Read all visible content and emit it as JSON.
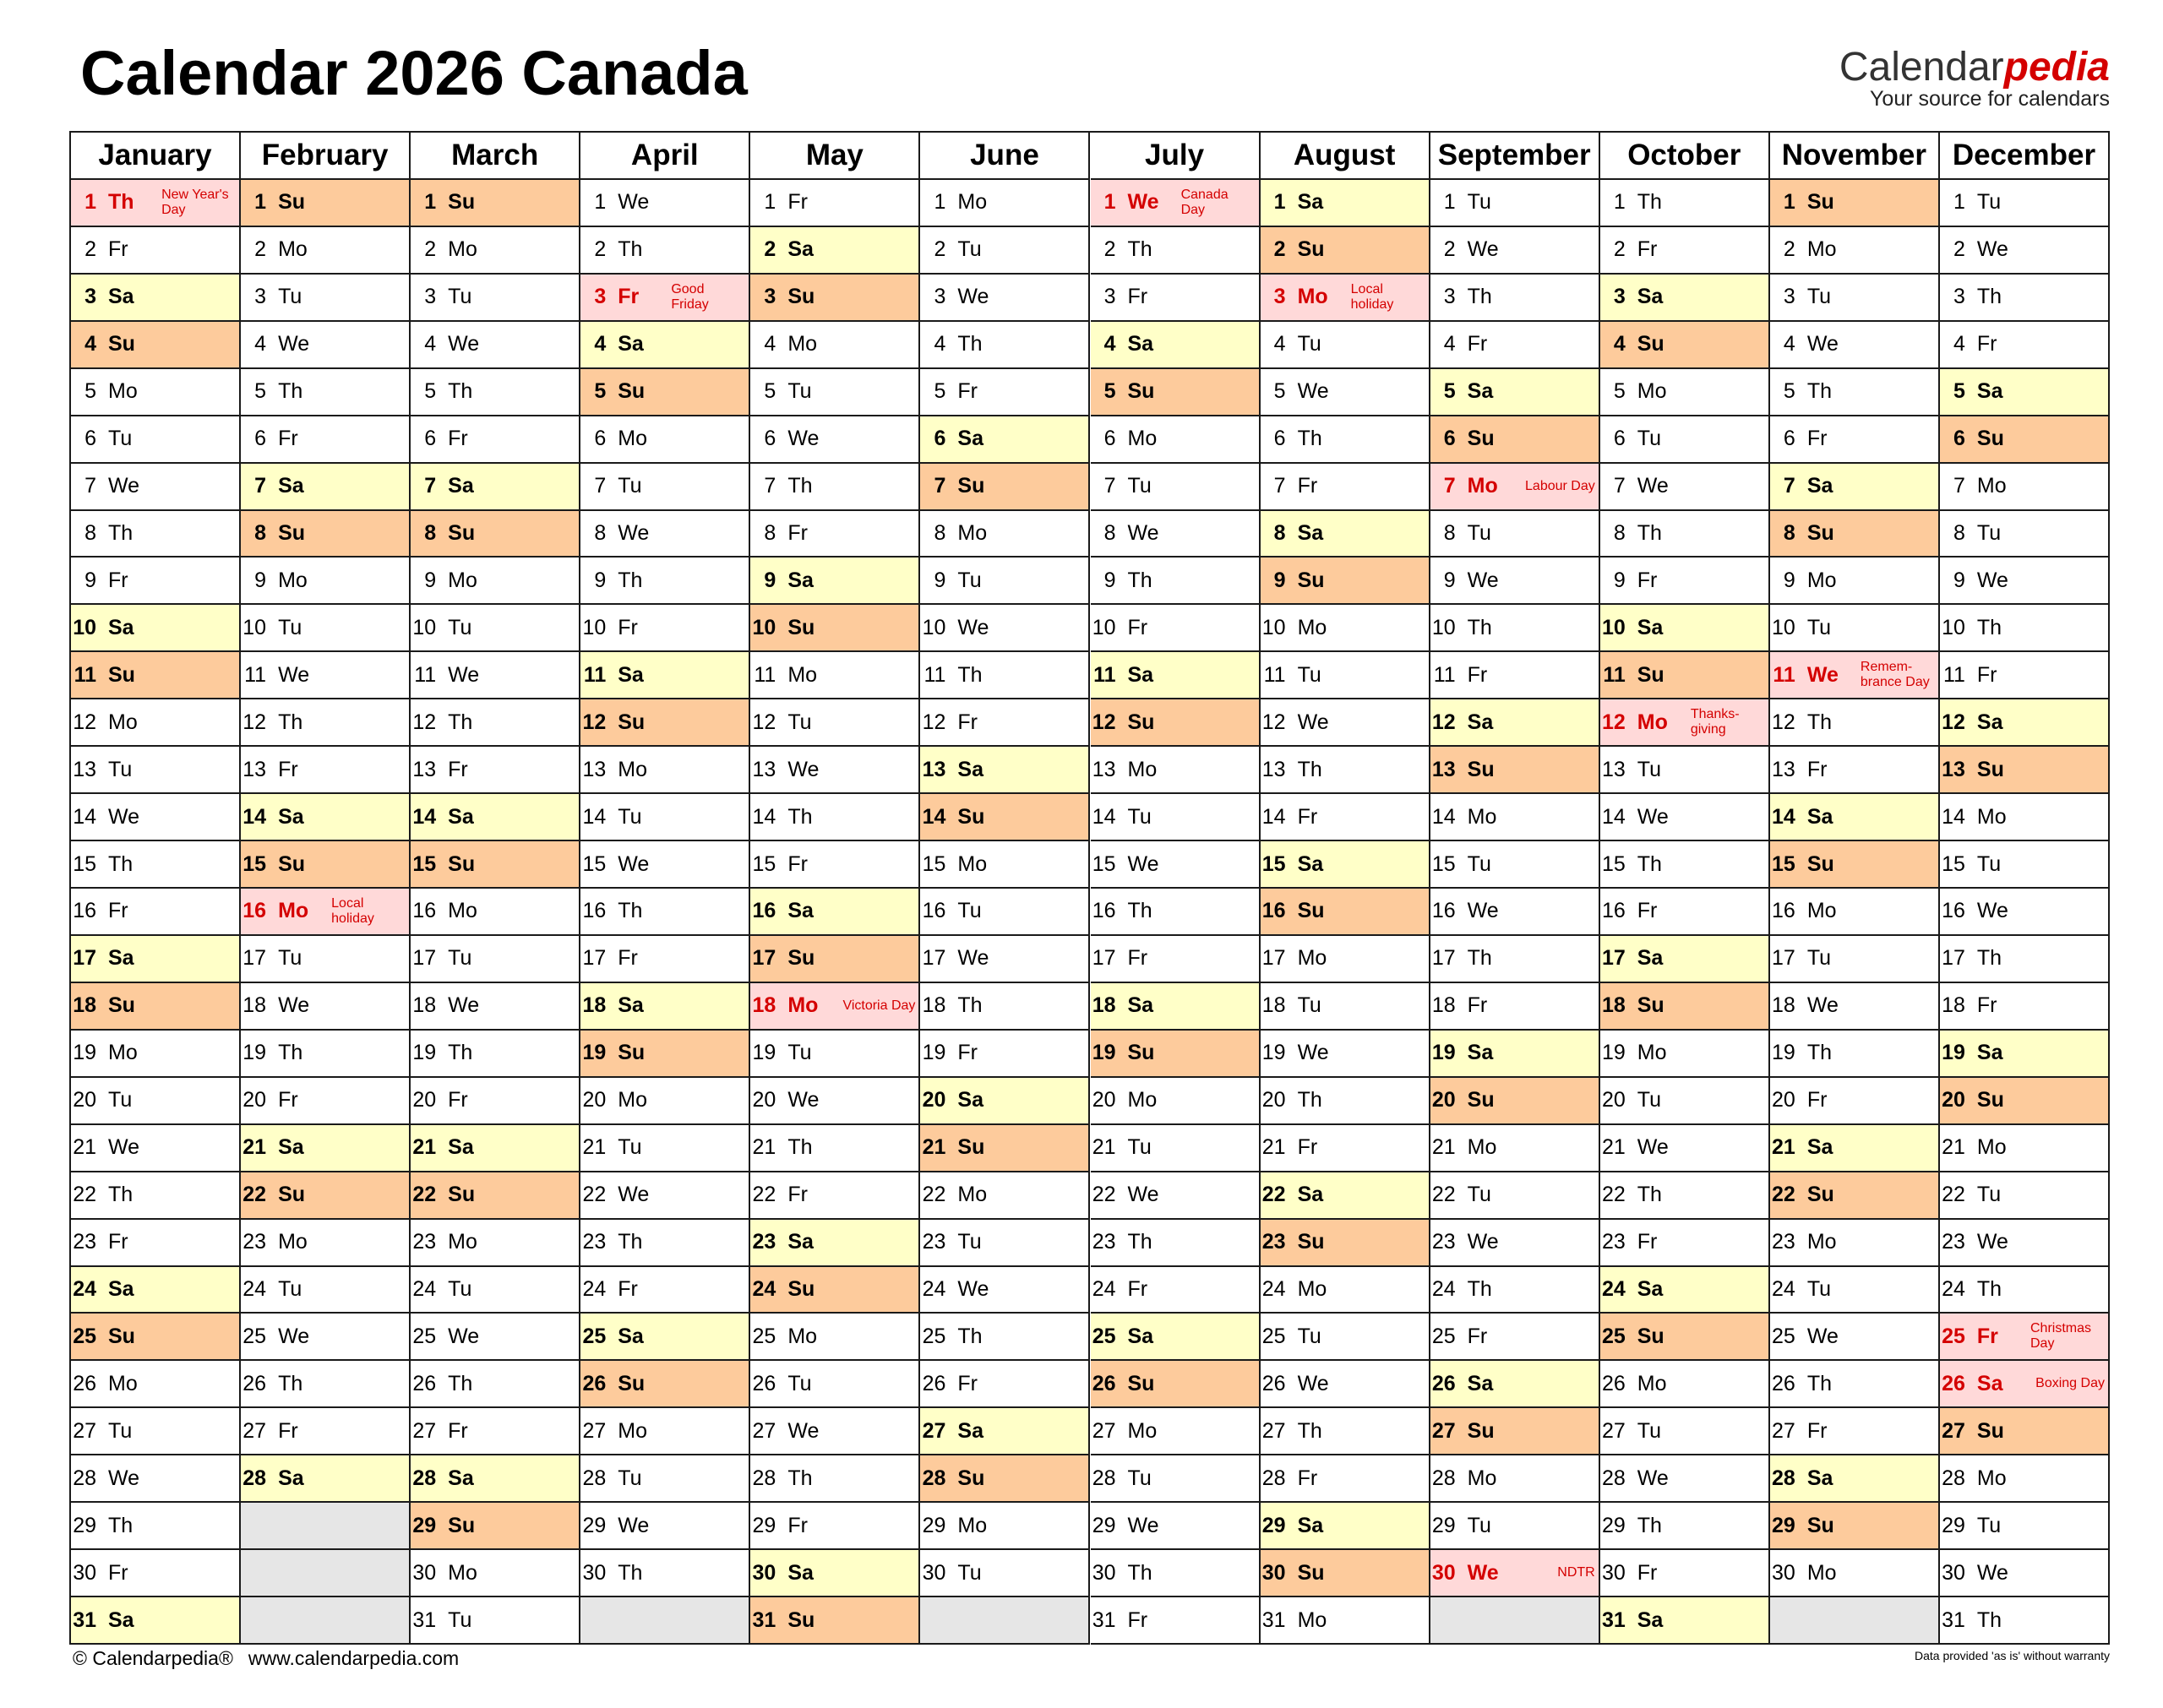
{
  "title": "Calendar 2026 Canada",
  "logo": {
    "name": "Calendar",
    "accent": "pedia",
    "tagline": "Your source for calendars"
  },
  "footer": {
    "copyright": "© Calendarpedia®",
    "url": "www.calendarpedia.com",
    "disclaimer": "Data provided 'as is' without warranty"
  },
  "day_colors": {
    "Sa": "#ffffc8",
    "Su": "#fdcb9c"
  },
  "holiday_color": "#ffd9d9",
  "holiday_text_color": "#d40000",
  "empty_color": "#e6e6e6",
  "months": [
    {
      "name": "January",
      "days": [
        [
          1,
          "Th",
          "New Year's Day"
        ],
        [
          2,
          "Fr"
        ],
        [
          3,
          "Sa"
        ],
        [
          4,
          "Su"
        ],
        [
          5,
          "Mo"
        ],
        [
          6,
          "Tu"
        ],
        [
          7,
          "We"
        ],
        [
          8,
          "Th"
        ],
        [
          9,
          "Fr"
        ],
        [
          10,
          "Sa"
        ],
        [
          11,
          "Su"
        ],
        [
          12,
          "Mo"
        ],
        [
          13,
          "Tu"
        ],
        [
          14,
          "We"
        ],
        [
          15,
          "Th"
        ],
        [
          16,
          "Fr"
        ],
        [
          17,
          "Sa"
        ],
        [
          18,
          "Su"
        ],
        [
          19,
          "Mo"
        ],
        [
          20,
          "Tu"
        ],
        [
          21,
          "We"
        ],
        [
          22,
          "Th"
        ],
        [
          23,
          "Fr"
        ],
        [
          24,
          "Sa"
        ],
        [
          25,
          "Su"
        ],
        [
          26,
          "Mo"
        ],
        [
          27,
          "Tu"
        ],
        [
          28,
          "We"
        ],
        [
          29,
          "Th"
        ],
        [
          30,
          "Fr"
        ],
        [
          31,
          "Sa"
        ]
      ]
    },
    {
      "name": "February",
      "days": [
        [
          1,
          "Su"
        ],
        [
          2,
          "Mo"
        ],
        [
          3,
          "Tu"
        ],
        [
          4,
          "We"
        ],
        [
          5,
          "Th"
        ],
        [
          6,
          "Fr"
        ],
        [
          7,
          "Sa"
        ],
        [
          8,
          "Su"
        ],
        [
          9,
          "Mo"
        ],
        [
          10,
          "Tu"
        ],
        [
          11,
          "We"
        ],
        [
          12,
          "Th"
        ],
        [
          13,
          "Fr"
        ],
        [
          14,
          "Sa"
        ],
        [
          15,
          "Su"
        ],
        [
          16,
          "Mo",
          "Local holiday"
        ],
        [
          17,
          "Tu"
        ],
        [
          18,
          "We"
        ],
        [
          19,
          "Th"
        ],
        [
          20,
          "Fr"
        ],
        [
          21,
          "Sa"
        ],
        [
          22,
          "Su"
        ],
        [
          23,
          "Mo"
        ],
        [
          24,
          "Tu"
        ],
        [
          25,
          "We"
        ],
        [
          26,
          "Th"
        ],
        [
          27,
          "Fr"
        ],
        [
          28,
          "Sa"
        ]
      ]
    },
    {
      "name": "March",
      "days": [
        [
          1,
          "Su"
        ],
        [
          2,
          "Mo"
        ],
        [
          3,
          "Tu"
        ],
        [
          4,
          "We"
        ],
        [
          5,
          "Th"
        ],
        [
          6,
          "Fr"
        ],
        [
          7,
          "Sa"
        ],
        [
          8,
          "Su"
        ],
        [
          9,
          "Mo"
        ],
        [
          10,
          "Tu"
        ],
        [
          11,
          "We"
        ],
        [
          12,
          "Th"
        ],
        [
          13,
          "Fr"
        ],
        [
          14,
          "Sa"
        ],
        [
          15,
          "Su"
        ],
        [
          16,
          "Mo"
        ],
        [
          17,
          "Tu"
        ],
        [
          18,
          "We"
        ],
        [
          19,
          "Th"
        ],
        [
          20,
          "Fr"
        ],
        [
          21,
          "Sa"
        ],
        [
          22,
          "Su"
        ],
        [
          23,
          "Mo"
        ],
        [
          24,
          "Tu"
        ],
        [
          25,
          "We"
        ],
        [
          26,
          "Th"
        ],
        [
          27,
          "Fr"
        ],
        [
          28,
          "Sa"
        ],
        [
          29,
          "Su"
        ],
        [
          30,
          "Mo"
        ],
        [
          31,
          "Tu"
        ]
      ]
    },
    {
      "name": "April",
      "days": [
        [
          1,
          "We"
        ],
        [
          2,
          "Th"
        ],
        [
          3,
          "Fr",
          "Good Friday"
        ],
        [
          4,
          "Sa"
        ],
        [
          5,
          "Su"
        ],
        [
          6,
          "Mo"
        ],
        [
          7,
          "Tu"
        ],
        [
          8,
          "We"
        ],
        [
          9,
          "Th"
        ],
        [
          10,
          "Fr"
        ],
        [
          11,
          "Sa"
        ],
        [
          12,
          "Su"
        ],
        [
          13,
          "Mo"
        ],
        [
          14,
          "Tu"
        ],
        [
          15,
          "We"
        ],
        [
          16,
          "Th"
        ],
        [
          17,
          "Fr"
        ],
        [
          18,
          "Sa"
        ],
        [
          19,
          "Su"
        ],
        [
          20,
          "Mo"
        ],
        [
          21,
          "Tu"
        ],
        [
          22,
          "We"
        ],
        [
          23,
          "Th"
        ],
        [
          24,
          "Fr"
        ],
        [
          25,
          "Sa"
        ],
        [
          26,
          "Su"
        ],
        [
          27,
          "Mo"
        ],
        [
          28,
          "Tu"
        ],
        [
          29,
          "We"
        ],
        [
          30,
          "Th"
        ]
      ]
    },
    {
      "name": "May",
      "days": [
        [
          1,
          "Fr"
        ],
        [
          2,
          "Sa"
        ],
        [
          3,
          "Su"
        ],
        [
          4,
          "Mo"
        ],
        [
          5,
          "Tu"
        ],
        [
          6,
          "We"
        ],
        [
          7,
          "Th"
        ],
        [
          8,
          "Fr"
        ],
        [
          9,
          "Sa"
        ],
        [
          10,
          "Su"
        ],
        [
          11,
          "Mo"
        ],
        [
          12,
          "Tu"
        ],
        [
          13,
          "We"
        ],
        [
          14,
          "Th"
        ],
        [
          15,
          "Fr"
        ],
        [
          16,
          "Sa"
        ],
        [
          17,
          "Su"
        ],
        [
          18,
          "Mo",
          "Victoria Day"
        ],
        [
          19,
          "Tu"
        ],
        [
          20,
          "We"
        ],
        [
          21,
          "Th"
        ],
        [
          22,
          "Fr"
        ],
        [
          23,
          "Sa"
        ],
        [
          24,
          "Su"
        ],
        [
          25,
          "Mo"
        ],
        [
          26,
          "Tu"
        ],
        [
          27,
          "We"
        ],
        [
          28,
          "Th"
        ],
        [
          29,
          "Fr"
        ],
        [
          30,
          "Sa"
        ],
        [
          31,
          "Su"
        ]
      ]
    },
    {
      "name": "June",
      "days": [
        [
          1,
          "Mo"
        ],
        [
          2,
          "Tu"
        ],
        [
          3,
          "We"
        ],
        [
          4,
          "Th"
        ],
        [
          5,
          "Fr"
        ],
        [
          6,
          "Sa"
        ],
        [
          7,
          "Su"
        ],
        [
          8,
          "Mo"
        ],
        [
          9,
          "Tu"
        ],
        [
          10,
          "We"
        ],
        [
          11,
          "Th"
        ],
        [
          12,
          "Fr"
        ],
        [
          13,
          "Sa"
        ],
        [
          14,
          "Su"
        ],
        [
          15,
          "Mo"
        ],
        [
          16,
          "Tu"
        ],
        [
          17,
          "We"
        ],
        [
          18,
          "Th"
        ],
        [
          19,
          "Fr"
        ],
        [
          20,
          "Sa"
        ],
        [
          21,
          "Su"
        ],
        [
          22,
          "Mo"
        ],
        [
          23,
          "Tu"
        ],
        [
          24,
          "We"
        ],
        [
          25,
          "Th"
        ],
        [
          26,
          "Fr"
        ],
        [
          27,
          "Sa"
        ],
        [
          28,
          "Su"
        ],
        [
          29,
          "Mo"
        ],
        [
          30,
          "Tu"
        ]
      ]
    },
    {
      "name": "July",
      "days": [
        [
          1,
          "We",
          "Canada Day"
        ],
        [
          2,
          "Th"
        ],
        [
          3,
          "Fr"
        ],
        [
          4,
          "Sa"
        ],
        [
          5,
          "Su"
        ],
        [
          6,
          "Mo"
        ],
        [
          7,
          "Tu"
        ],
        [
          8,
          "We"
        ],
        [
          9,
          "Th"
        ],
        [
          10,
          "Fr"
        ],
        [
          11,
          "Sa"
        ],
        [
          12,
          "Su"
        ],
        [
          13,
          "Mo"
        ],
        [
          14,
          "Tu"
        ],
        [
          15,
          "We"
        ],
        [
          16,
          "Th"
        ],
        [
          17,
          "Fr"
        ],
        [
          18,
          "Sa"
        ],
        [
          19,
          "Su"
        ],
        [
          20,
          "Mo"
        ],
        [
          21,
          "Tu"
        ],
        [
          22,
          "We"
        ],
        [
          23,
          "Th"
        ],
        [
          24,
          "Fr"
        ],
        [
          25,
          "Sa"
        ],
        [
          26,
          "Su"
        ],
        [
          27,
          "Mo"
        ],
        [
          28,
          "Tu"
        ],
        [
          29,
          "We"
        ],
        [
          30,
          "Th"
        ],
        [
          31,
          "Fr"
        ]
      ]
    },
    {
      "name": "August",
      "days": [
        [
          1,
          "Sa"
        ],
        [
          2,
          "Su"
        ],
        [
          3,
          "Mo",
          "Local holiday"
        ],
        [
          4,
          "Tu"
        ],
        [
          5,
          "We"
        ],
        [
          6,
          "Th"
        ],
        [
          7,
          "Fr"
        ],
        [
          8,
          "Sa"
        ],
        [
          9,
          "Su"
        ],
        [
          10,
          "Mo"
        ],
        [
          11,
          "Tu"
        ],
        [
          12,
          "We"
        ],
        [
          13,
          "Th"
        ],
        [
          14,
          "Fr"
        ],
        [
          15,
          "Sa"
        ],
        [
          16,
          "Su"
        ],
        [
          17,
          "Mo"
        ],
        [
          18,
          "Tu"
        ],
        [
          19,
          "We"
        ],
        [
          20,
          "Th"
        ],
        [
          21,
          "Fr"
        ],
        [
          22,
          "Sa"
        ],
        [
          23,
          "Su"
        ],
        [
          24,
          "Mo"
        ],
        [
          25,
          "Tu"
        ],
        [
          26,
          "We"
        ],
        [
          27,
          "Th"
        ],
        [
          28,
          "Fr"
        ],
        [
          29,
          "Sa"
        ],
        [
          30,
          "Su"
        ],
        [
          31,
          "Mo"
        ]
      ]
    },
    {
      "name": "September",
      "days": [
        [
          1,
          "Tu"
        ],
        [
          2,
          "We"
        ],
        [
          3,
          "Th"
        ],
        [
          4,
          "Fr"
        ],
        [
          5,
          "Sa"
        ],
        [
          6,
          "Su"
        ],
        [
          7,
          "Mo",
          "Labour Day"
        ],
        [
          8,
          "Tu"
        ],
        [
          9,
          "We"
        ],
        [
          10,
          "Th"
        ],
        [
          11,
          "Fr"
        ],
        [
          12,
          "Sa"
        ],
        [
          13,
          "Su"
        ],
        [
          14,
          "Mo"
        ],
        [
          15,
          "Tu"
        ],
        [
          16,
          "We"
        ],
        [
          17,
          "Th"
        ],
        [
          18,
          "Fr"
        ],
        [
          19,
          "Sa"
        ],
        [
          20,
          "Su"
        ],
        [
          21,
          "Mo"
        ],
        [
          22,
          "Tu"
        ],
        [
          23,
          "We"
        ],
        [
          24,
          "Th"
        ],
        [
          25,
          "Fr"
        ],
        [
          26,
          "Sa"
        ],
        [
          27,
          "Su"
        ],
        [
          28,
          "Mo"
        ],
        [
          29,
          "Tu"
        ],
        [
          30,
          "We",
          "NDTR"
        ]
      ]
    },
    {
      "name": "October",
      "days": [
        [
          1,
          "Th"
        ],
        [
          2,
          "Fr"
        ],
        [
          3,
          "Sa"
        ],
        [
          4,
          "Su"
        ],
        [
          5,
          "Mo"
        ],
        [
          6,
          "Tu"
        ],
        [
          7,
          "We"
        ],
        [
          8,
          "Th"
        ],
        [
          9,
          "Fr"
        ],
        [
          10,
          "Sa"
        ],
        [
          11,
          "Su"
        ],
        [
          12,
          "Mo",
          "Thanks-giving"
        ],
        [
          13,
          "Tu"
        ],
        [
          14,
          "We"
        ],
        [
          15,
          "Th"
        ],
        [
          16,
          "Fr"
        ],
        [
          17,
          "Sa"
        ],
        [
          18,
          "Su"
        ],
        [
          19,
          "Mo"
        ],
        [
          20,
          "Tu"
        ],
        [
          21,
          "We"
        ],
        [
          22,
          "Th"
        ],
        [
          23,
          "Fr"
        ],
        [
          24,
          "Sa"
        ],
        [
          25,
          "Su"
        ],
        [
          26,
          "Mo"
        ],
        [
          27,
          "Tu"
        ],
        [
          28,
          "We"
        ],
        [
          29,
          "Th"
        ],
        [
          30,
          "Fr"
        ],
        [
          31,
          "Sa"
        ]
      ]
    },
    {
      "name": "November",
      "days": [
        [
          1,
          "Su"
        ],
        [
          2,
          "Mo"
        ],
        [
          3,
          "Tu"
        ],
        [
          4,
          "We"
        ],
        [
          5,
          "Th"
        ],
        [
          6,
          "Fr"
        ],
        [
          7,
          "Sa"
        ],
        [
          8,
          "Su"
        ],
        [
          9,
          "Mo"
        ],
        [
          10,
          "Tu"
        ],
        [
          11,
          "We",
          "Remem-brance Day"
        ],
        [
          12,
          "Th"
        ],
        [
          13,
          "Fr"
        ],
        [
          14,
          "Sa"
        ],
        [
          15,
          "Su"
        ],
        [
          16,
          "Mo"
        ],
        [
          17,
          "Tu"
        ],
        [
          18,
          "We"
        ],
        [
          19,
          "Th"
        ],
        [
          20,
          "Fr"
        ],
        [
          21,
          "Sa"
        ],
        [
          22,
          "Su"
        ],
        [
          23,
          "Mo"
        ],
        [
          24,
          "Tu"
        ],
        [
          25,
          "We"
        ],
        [
          26,
          "Th"
        ],
        [
          27,
          "Fr"
        ],
        [
          28,
          "Sa"
        ],
        [
          29,
          "Su"
        ],
        [
          30,
          "Mo"
        ]
      ]
    },
    {
      "name": "December",
      "days": [
        [
          1,
          "Tu"
        ],
        [
          2,
          "We"
        ],
        [
          3,
          "Th"
        ],
        [
          4,
          "Fr"
        ],
        [
          5,
          "Sa"
        ],
        [
          6,
          "Su"
        ],
        [
          7,
          "Mo"
        ],
        [
          8,
          "Tu"
        ],
        [
          9,
          "We"
        ],
        [
          10,
          "Th"
        ],
        [
          11,
          "Fr"
        ],
        [
          12,
          "Sa"
        ],
        [
          13,
          "Su"
        ],
        [
          14,
          "Mo"
        ],
        [
          15,
          "Tu"
        ],
        [
          16,
          "We"
        ],
        [
          17,
          "Th"
        ],
        [
          18,
          "Fr"
        ],
        [
          19,
          "Sa"
        ],
        [
          20,
          "Su"
        ],
        [
          21,
          "Mo"
        ],
        [
          22,
          "Tu"
        ],
        [
          23,
          "We"
        ],
        [
          24,
          "Th"
        ],
        [
          25,
          "Fr",
          "Christmas Day"
        ],
        [
          26,
          "Sa",
          "Boxing Day"
        ],
        [
          27,
          "Su"
        ],
        [
          28,
          "Mo"
        ],
        [
          29,
          "Tu"
        ],
        [
          30,
          "We"
        ],
        [
          31,
          "Th"
        ]
      ]
    }
  ]
}
